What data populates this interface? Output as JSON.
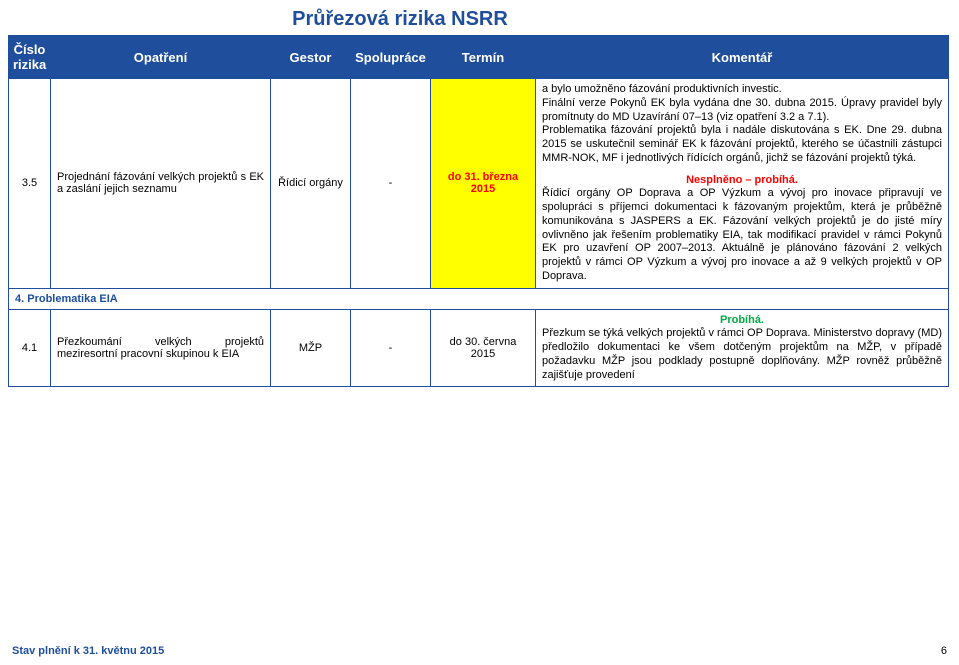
{
  "title": "Průřezová rizika NSRR",
  "columns": {
    "c1": "Číslo rizika",
    "c2": "Opatření",
    "c3": "Gestor",
    "c4": "Spolupráce",
    "c5": "Termín",
    "c6": "Komentář"
  },
  "row35": {
    "num": "3.5",
    "opatreni": "Projednání fázování velkých projektů s EK a zaslání jejich seznamu",
    "gestor": "Řídicí orgány",
    "spoluprace": "-",
    "termin": "do 31. března 2015",
    "kom_top": "a bylo umožněno fázování produktivních investic.\nFinální verze Pokynů EK byla vydána dne 30. dubna 2015. Úpravy pravidel byly promítnuty do MD Uzavírání 07–13 (viz opatření 3.2 a 7.1).\nProblematika fázování projektů byla i nadále diskutována s EK. Dne 29. dubna 2015 se uskutečnil seminář EK k fázování projektů, kterého se účastnili zástupci MMR-NOK, MF i jednotlivých řídících orgánů, jichž se fázování projektů týká.",
    "status": "Nesplněno – probíhá.",
    "kom_bottom": "Řídicí orgány OP Doprava a OP Výzkum a vývoj pro inovace připravují ve spolupráci s příjemci dokumentaci k fázovaným projektům, která je průběžně komunikována s JASPERS a EK. Fázování velkých projektů je do jisté míry ovlivněno jak řešením problematiky EIA, tak modifikací pravidel v rámci Pokynů EK pro uzavření OP 2007–2013. Aktuálně je plánováno fázování 2 velkých projektů v rámci OP Výzkum a vývoj pro inovace a až 9 velkých projektů v OP Doprava."
  },
  "section4": "4. Problematika EIA",
  "row41": {
    "num": "4.1",
    "opatreni": "Přezkoumání velkých projektů meziresortní pracovní skupinou k EIA",
    "gestor": "MŽP",
    "spoluprace": "-",
    "termin": "do 30. června 2015",
    "status": "Probíhá.",
    "kom": "Přezkum se týká velkých projektů v rámci OP Doprava. Ministerstvo dopravy (MD) předložilo dokumentaci ke všem dotčeným projektům na MŽP, v případě požadavku MŽP jsou podklady postupně doplňovány. MŽP rovněž průběžně zajišťuje provedení"
  },
  "footer": {
    "left": "Stav plnění k 31. květnu 2015",
    "page": "6"
  },
  "colors": {
    "brand": "#1f4e9c",
    "highlight_bg": "#ffff00",
    "highlight_fg": "#ff0000",
    "status_green": "#00aa44",
    "status_red": "#ff0000"
  }
}
